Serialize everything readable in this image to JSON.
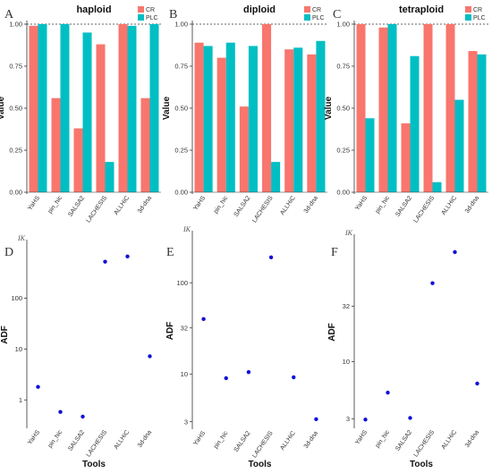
{
  "figure": {
    "colors": {
      "CR": "#F8766D",
      "PLC": "#00BFC4",
      "point": "#1010D8",
      "axis": "#333333",
      "ref_line": "#333333"
    },
    "tools": [
      "YaHS",
      "pin_hic",
      "SALSA2",
      "LACHESIS",
      "ALLHiC",
      "3d-dna"
    ]
  },
  "chart_data": [
    {
      "panel": "A",
      "type": "bar",
      "title": "haploid",
      "ylabel": "Value",
      "xlabel": "",
      "categories": [
        "YaHS",
        "pin_hic",
        "SALSA2",
        "LACHESIS",
        "ALLHiC",
        "3d-dna"
      ],
      "ylim": [
        0,
        1
      ],
      "yticks": [
        "0.00",
        "0.25",
        "0.50",
        "0.75",
        "1.00"
      ],
      "ytick_values": [
        0,
        0.25,
        0.5,
        0.75,
        1
      ],
      "reference_line": 1,
      "legend": "top-right",
      "series": [
        {
          "name": "CR",
          "color": "#F8766D",
          "values": [
            0.99,
            0.56,
            0.38,
            0.88,
            1.0,
            0.56
          ]
        },
        {
          "name": "PLC",
          "color": "#00BFC4",
          "values": [
            1.0,
            1.0,
            0.95,
            0.18,
            0.99,
            1.0
          ]
        }
      ]
    },
    {
      "panel": "B",
      "type": "bar",
      "title": "diploid",
      "ylabel": "Value",
      "xlabel": "",
      "categories": [
        "YaHS",
        "pin_hic",
        "SALSA2",
        "LACHESIS",
        "ALLHiC",
        "3d-dna"
      ],
      "ylim": [
        0,
        1
      ],
      "yticks": [
        "0.00",
        "0.25",
        "0.50",
        "0.75",
        "1.00"
      ],
      "ytick_values": [
        0,
        0.25,
        0.5,
        0.75,
        1
      ],
      "reference_line": 1,
      "legend": "top-right",
      "series": [
        {
          "name": "CR",
          "color": "#F8766D",
          "values": [
            0.89,
            0.8,
            0.51,
            1.0,
            0.85,
            0.82
          ]
        },
        {
          "name": "PLC",
          "color": "#00BFC4",
          "values": [
            0.87,
            0.89,
            0.87,
            0.18,
            0.86,
            0.9
          ]
        }
      ]
    },
    {
      "panel": "C",
      "type": "bar",
      "title": "tetraploid",
      "ylabel": "Value",
      "xlabel": "",
      "categories": [
        "YaHS",
        "pin_hic",
        "SALSA2",
        "LACHESIS",
        "ALLHiC",
        "3d-dna"
      ],
      "ylim": [
        0,
        1
      ],
      "yticks": [
        "0.00",
        "0.25",
        "0.50",
        "0.75",
        "1.00"
      ],
      "ytick_values": [
        0,
        0.25,
        0.5,
        0.75,
        1
      ],
      "reference_line": 1,
      "legend": "top-right",
      "series": [
        {
          "name": "CR",
          "color": "#F8766D",
          "values": [
            1.0,
            0.98,
            0.41,
            1.0,
            1.0,
            0.84
          ]
        },
        {
          "name": "PLC",
          "color": "#00BFC4",
          "values": [
            0.44,
            1.0,
            0.81,
            0.06,
            0.55,
            0.82
          ]
        }
      ]
    },
    {
      "panel": "D",
      "type": "scatter",
      "ylabel": "ADF",
      "xlabel": "Tools",
      "unit_label": "IK",
      "log_y": true,
      "ylim": [
        0.3,
        1200
      ],
      "yticks": [
        "1",
        "10",
        "100"
      ],
      "ytick_values": [
        1,
        10,
        100
      ],
      "categories": [
        "YaHS",
        "pin_hic",
        "SALSA2",
        "LACHESIS",
        "ALLHiC",
        "3d-dna"
      ],
      "values": [
        1.8,
        0.58,
        0.47,
        520,
        660,
        7.2
      ]
    },
    {
      "panel": "E",
      "type": "scatter",
      "ylabel": "ADF",
      "xlabel": "Tools",
      "unit_label": "IK",
      "log_y": true,
      "ylim": [
        2.6,
        340
      ],
      "yticks": [
        "3",
        "10",
        "32",
        "100"
      ],
      "ytick_values": [
        3,
        10,
        32,
        100
      ],
      "categories": [
        "YaHS",
        "pin_hic",
        "SALSA2",
        "LACHESIS",
        "ALLHiC",
        "3d-dna"
      ],
      "values": [
        40,
        9,
        10.5,
        190,
        9.2,
        3.2
      ]
    },
    {
      "panel": "F",
      "type": "scatter",
      "ylabel": "ADF",
      "xlabel": "Tools",
      "unit_label": "IK",
      "log_y": true,
      "ylim": [
        2.55,
        135
      ],
      "yticks": [
        "3",
        "10",
        "32"
      ],
      "ytick_values": [
        3,
        10,
        32
      ],
      "categories": [
        "YaHS",
        "pin_hic",
        "SALSA2",
        "LACHESIS",
        "ALLHiC",
        "3d-dna"
      ],
      "values": [
        2.95,
        5.2,
        3.05,
        52,
        100,
        6.3
      ]
    }
  ]
}
